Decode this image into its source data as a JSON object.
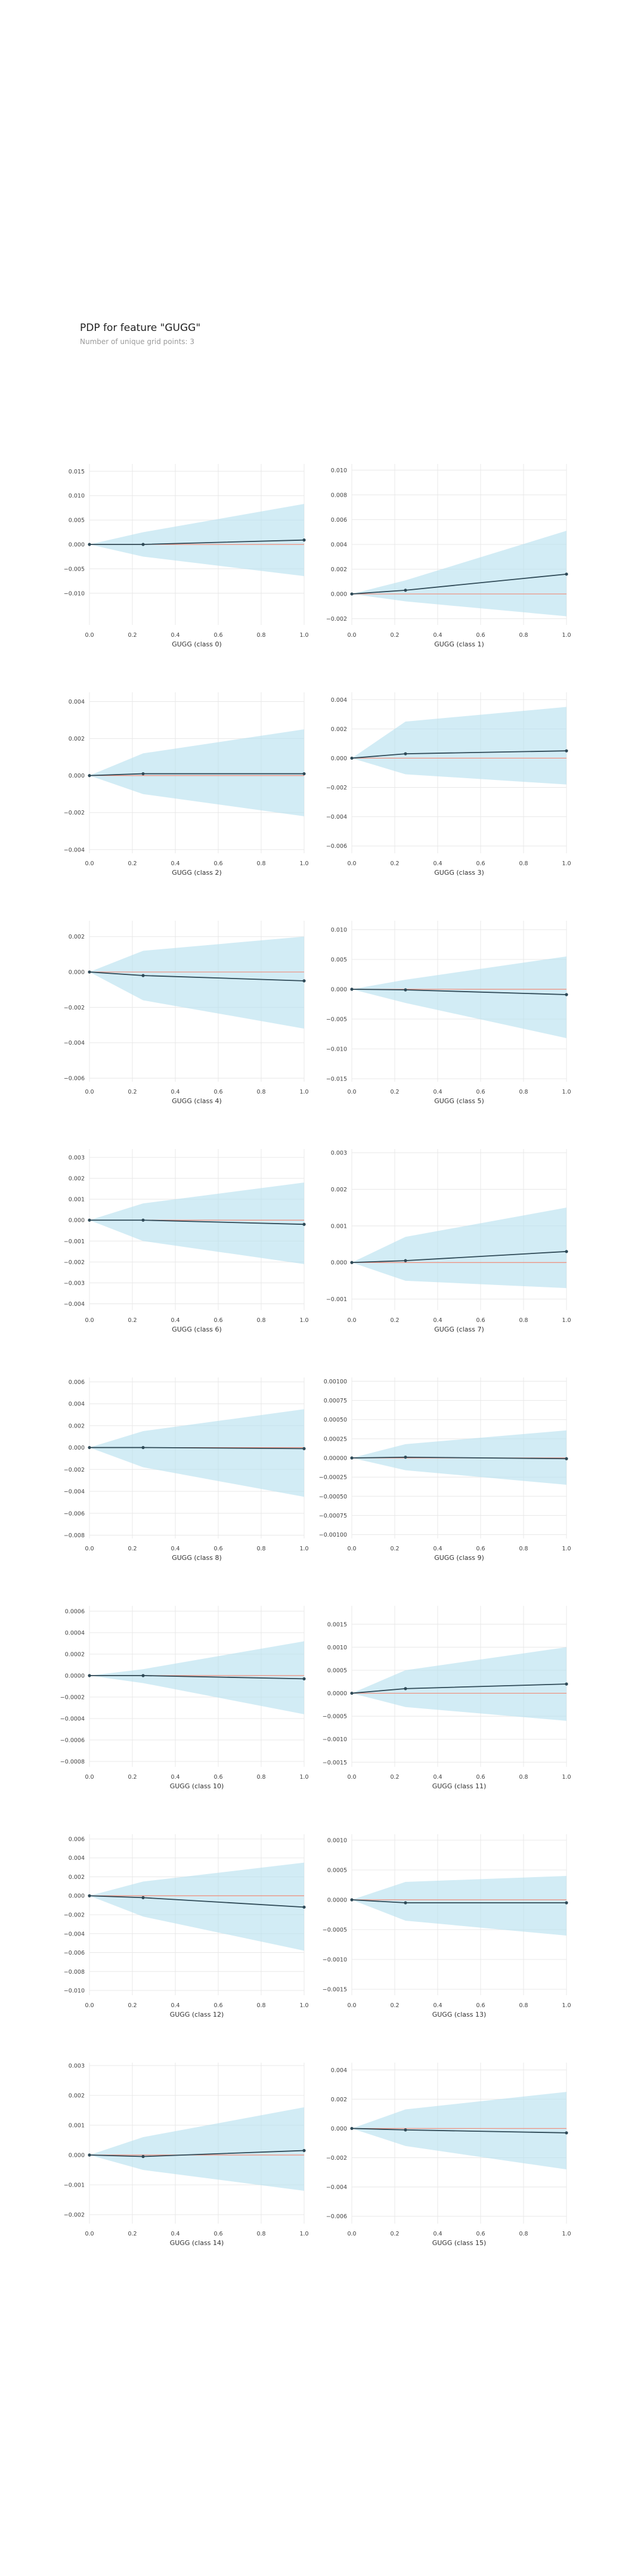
{
  "header": {
    "title": "PDP for feature \"GUGG\"",
    "subtitle": "Number of unique grid points: 3"
  },
  "colors": {
    "band": "#b7e1ef",
    "line": "#2f4a57",
    "reference": "#f08c7a",
    "grid": "#e8e8e8"
  },
  "chart_data": [
    {
      "type": "line",
      "xlabel": "GUGG (class 0)",
      "x": [
        0,
        0.25,
        1
      ],
      "y": [
        0,
        0,
        0.0009
      ],
      "lower": [
        0,
        -0.0025,
        -0.0065
      ],
      "upper": [
        0,
        0.0025,
        0.0083
      ],
      "ylim": [
        -0.0165,
        0.0165
      ],
      "yticks": [
        -0.01,
        -0.005,
        0,
        0.005,
        0.01,
        0.015
      ],
      "ytick_labels": [
        "−0.010",
        "−0.005",
        "0.000",
        "0.005",
        "0.010",
        "0.015"
      ],
      "xticks": [
        0,
        0.2,
        0.4,
        0.6,
        0.8,
        1
      ],
      "xtick_labels": [
        "0.0",
        "0.2",
        "0.4",
        "0.6",
        "0.8",
        "1.0"
      ]
    },
    {
      "type": "line",
      "xlabel": "GUGG (class 1)",
      "x": [
        0,
        0.25,
        1
      ],
      "y": [
        0,
        0.0003,
        0.0016
      ],
      "lower": [
        0,
        -0.0006,
        -0.0018
      ],
      "upper": [
        0,
        0.0011,
        0.0051
      ],
      "ylim": [
        -0.0025,
        0.0105
      ],
      "yticks": [
        -0.002,
        0,
        0.002,
        0.004,
        0.006,
        0.008,
        0.01
      ],
      "ytick_labels": [
        "−0.002",
        "0.000",
        "0.002",
        "0.004",
        "0.006",
        "0.008",
        "0.010"
      ],
      "xticks": [
        0,
        0.2,
        0.4,
        0.6,
        0.8,
        1
      ],
      "xtick_labels": [
        "0.0",
        "0.2",
        "0.4",
        "0.6",
        "0.8",
        "1.0"
      ]
    },
    {
      "type": "line",
      "xlabel": "GUGG (class 2)",
      "x": [
        0,
        0.25,
        1
      ],
      "y": [
        0,
        0.0001,
        0.0001
      ],
      "lower": [
        0,
        -0.001,
        -0.0022
      ],
      "upper": [
        0,
        0.0012,
        0.0025
      ],
      "ylim": [
        -0.0042,
        0.0045
      ],
      "yticks": [
        -0.004,
        -0.002,
        0,
        0.002,
        0.004
      ],
      "ytick_labels": [
        "−0.004",
        "−0.002",
        "0.000",
        "0.002",
        "0.004"
      ],
      "xticks": [
        0,
        0.2,
        0.4,
        0.6,
        0.8,
        1
      ],
      "xtick_labels": [
        "0.0",
        "0.2",
        "0.4",
        "0.6",
        "0.8",
        "1.0"
      ]
    },
    {
      "type": "line",
      "xlabel": "GUGG (class 3)",
      "x": [
        0,
        0.25,
        1
      ],
      "y": [
        0,
        0.0003,
        0.0005
      ],
      "lower": [
        0,
        -0.0011,
        -0.0018
      ],
      "upper": [
        0,
        0.0025,
        0.0035
      ],
      "ylim": [
        -0.0065,
        0.0045
      ],
      "yticks": [
        -0.006,
        -0.004,
        -0.002,
        0,
        0.002,
        0.004
      ],
      "ytick_labels": [
        "−0.006",
        "−0.004",
        "−0.002",
        "0.000",
        "0.002",
        "0.004"
      ],
      "xticks": [
        0,
        0.2,
        0.4,
        0.6,
        0.8,
        1
      ],
      "xtick_labels": [
        "0.0",
        "0.2",
        "0.4",
        "0.6",
        "0.8",
        "1.0"
      ]
    },
    {
      "type": "line",
      "xlabel": "GUGG (class 4)",
      "x": [
        0,
        0.25,
        1
      ],
      "y": [
        0,
        -0.0002,
        -0.0005
      ],
      "lower": [
        0,
        -0.0016,
        -0.0032
      ],
      "upper": [
        0,
        0.0012,
        0.002
      ],
      "ylim": [
        -0.0062,
        0.0029
      ],
      "yticks": [
        -0.006,
        -0.004,
        -0.002,
        0,
        0.002
      ],
      "ytick_labels": [
        "−0.006",
        "−0.004",
        "−0.002",
        "0.000",
        "0.002"
      ],
      "xticks": [
        0,
        0.2,
        0.4,
        0.6,
        0.8,
        1
      ],
      "xtick_labels": [
        "0.0",
        "0.2",
        "0.4",
        "0.6",
        "0.8",
        "1.0"
      ]
    },
    {
      "type": "line",
      "xlabel": "GUGG (class 5)",
      "x": [
        0,
        0.25,
        1
      ],
      "y": [
        0,
        -0.0001,
        -0.0009
      ],
      "lower": [
        0,
        -0.0023,
        -0.0082
      ],
      "upper": [
        0,
        0.0016,
        0.0055
      ],
      "ylim": [
        -0.0155,
        0.0115
      ],
      "yticks": [
        -0.015,
        -0.01,
        -0.005,
        0,
        0.005,
        0.01
      ],
      "ytick_labels": [
        "−0.015",
        "−0.010",
        "−0.005",
        "0.000",
        "0.005",
        "0.010"
      ],
      "xticks": [
        0,
        0.2,
        0.4,
        0.6,
        0.8,
        1
      ],
      "xtick_labels": [
        "0.0",
        "0.2",
        "0.4",
        "0.6",
        "0.8",
        "1.0"
      ]
    },
    {
      "type": "line",
      "xlabel": "GUGG (class 6)",
      "x": [
        0,
        0.25,
        1
      ],
      "y": [
        0,
        0,
        -0.0002
      ],
      "lower": [
        0,
        -0.001,
        -0.0021
      ],
      "upper": [
        0,
        0.0008,
        0.0018
      ],
      "ylim": [
        -0.0043,
        0.0034
      ],
      "yticks": [
        -0.004,
        -0.003,
        -0.002,
        -0.001,
        0,
        0.001,
        0.002,
        0.003
      ],
      "ytick_labels": [
        "−0.004",
        "−0.003",
        "−0.002",
        "−0.001",
        "0.000",
        "0.001",
        "0.002",
        "0.003"
      ],
      "xticks": [
        0,
        0.2,
        0.4,
        0.6,
        0.8,
        1
      ],
      "xtick_labels": [
        "0.0",
        "0.2",
        "0.4",
        "0.6",
        "0.8",
        "1.0"
      ]
    },
    {
      "type": "line",
      "xlabel": "GUGG (class 7)",
      "x": [
        0,
        0.25,
        1
      ],
      "y": [
        0,
        5e-05,
        0.0003
      ],
      "lower": [
        0,
        -0.0005,
        -0.0007
      ],
      "upper": [
        0,
        0.0007,
        0.0015
      ],
      "ylim": [
        -0.0013,
        0.0031
      ],
      "yticks": [
        -0.001,
        0,
        0.001,
        0.002,
        0.003
      ],
      "ytick_labels": [
        "−0.001",
        "0.000",
        "0.001",
        "0.002",
        "0.003"
      ],
      "xticks": [
        0,
        0.2,
        0.4,
        0.6,
        0.8,
        1
      ],
      "xtick_labels": [
        "0.0",
        "0.2",
        "0.4",
        "0.6",
        "0.8",
        "1.0"
      ]
    },
    {
      "type": "line",
      "xlabel": "GUGG (class 8)",
      "x": [
        0,
        0.25,
        1
      ],
      "y": [
        0,
        0,
        -0.0001
      ],
      "lower": [
        0,
        -0.0018,
        -0.0045
      ],
      "upper": [
        0,
        0.0015,
        0.0035
      ],
      "ylim": [
        -0.0083,
        0.0064
      ],
      "yticks": [
        -0.008,
        -0.006,
        -0.004,
        -0.002,
        0,
        0.002,
        0.004,
        0.006
      ],
      "ytick_labels": [
        "−0.008",
        "−0.006",
        "−0.004",
        "−0.002",
        "0.000",
        "0.002",
        "0.004",
        "0.006"
      ],
      "xticks": [
        0,
        0.2,
        0.4,
        0.6,
        0.8,
        1
      ],
      "xtick_labels": [
        "0.0",
        "0.2",
        "0.4",
        "0.6",
        "0.8",
        "1.0"
      ]
    },
    {
      "type": "line",
      "xlabel": "GUGG (class 9)",
      "x": [
        0,
        0.25,
        1
      ],
      "y": [
        0,
        1e-05,
        -1e-05
      ],
      "lower": [
        0,
        -0.00016,
        -0.00035
      ],
      "upper": [
        0,
        0.00018,
        0.00036
      ],
      "ylim": [
        -0.00105,
        0.00105
      ],
      "yticks": [
        -0.001,
        -0.00075,
        -0.0005,
        -0.00025,
        0,
        0.00025,
        0.0005,
        0.00075,
        0.001
      ],
      "ytick_labels": [
        "−0.00100",
        "−0.00075",
        "−0.00050",
        "−0.00025",
        "0.00000",
        "0.00025",
        "0.00050",
        "0.00075",
        "0.00100"
      ],
      "xticks": [
        0,
        0.2,
        0.4,
        0.6,
        0.8,
        1
      ],
      "xtick_labels": [
        "0.0",
        "0.2",
        "0.4",
        "0.6",
        "0.8",
        "1.0"
      ]
    },
    {
      "type": "line",
      "xlabel": "GUGG (class 10)",
      "x": [
        0,
        0.25,
        1
      ],
      "y": [
        0,
        0,
        -3e-05
      ],
      "lower": [
        0,
        -7e-05,
        -0.00036
      ],
      "upper": [
        0,
        6e-05,
        0.00032
      ],
      "ylim": [
        -0.00085,
        0.00065
      ],
      "yticks": [
        -0.0008,
        -0.0006,
        -0.0004,
        -0.0002,
        0,
        0.0002,
        0.0004,
        0.0006
      ],
      "ytick_labels": [
        "−0.0008",
        "−0.0006",
        "−0.0004",
        "−0.0002",
        "0.0000",
        "0.0002",
        "0.0004",
        "0.0006"
      ],
      "xticks": [
        0,
        0.2,
        0.4,
        0.6,
        0.8,
        1
      ],
      "xtick_labels": [
        "0.0",
        "0.2",
        "0.4",
        "0.6",
        "0.8",
        "1.0"
      ]
    },
    {
      "type": "line",
      "xlabel": "GUGG (class 11)",
      "x": [
        0,
        0.25,
        1
      ],
      "y": [
        0,
        0.0001,
        0.0002
      ],
      "lower": [
        0,
        -0.0003,
        -0.0006
      ],
      "upper": [
        0,
        0.0005,
        0.001
      ],
      "ylim": [
        -0.0016,
        0.0019
      ],
      "yticks": [
        -0.0015,
        -0.001,
        -0.0005,
        0,
        0.0005,
        0.001,
        0.0015
      ],
      "ytick_labels": [
        "−0.0015",
        "−0.0010",
        "−0.0005",
        "0.0000",
        "0.0005",
        "0.0010",
        "0.0015"
      ],
      "xticks": [
        0,
        0.2,
        0.4,
        0.6,
        0.8,
        1
      ],
      "xtick_labels": [
        "0.0",
        "0.2",
        "0.4",
        "0.6",
        "0.8",
        "1.0"
      ]
    },
    {
      "type": "line",
      "xlabel": "GUGG (class 12)",
      "x": [
        0,
        0.25,
        1
      ],
      "y": [
        0,
        -0.0002,
        -0.0012
      ],
      "lower": [
        0,
        -0.0022,
        -0.0058
      ],
      "upper": [
        0,
        0.0015,
        0.0035
      ],
      "ylim": [
        -0.0105,
        0.0065
      ],
      "yticks": [
        -0.01,
        -0.008,
        -0.006,
        -0.004,
        -0.002,
        0,
        0.002,
        0.004,
        0.006
      ],
      "ytick_labels": [
        "−0.010",
        "−0.008",
        "−0.006",
        "−0.004",
        "−0.002",
        "0.000",
        "0.002",
        "0.004",
        "0.006"
      ],
      "xticks": [
        0,
        0.2,
        0.4,
        0.6,
        0.8,
        1
      ],
      "xtick_labels": [
        "0.0",
        "0.2",
        "0.4",
        "0.6",
        "0.8",
        "1.0"
      ]
    },
    {
      "type": "line",
      "xlabel": "GUGG (class 13)",
      "x": [
        0,
        0.25,
        1
      ],
      "y": [
        0,
        -5e-05,
        -5e-05
      ],
      "lower": [
        0,
        -0.00035,
        -0.0006
      ],
      "upper": [
        0,
        0.0003,
        0.0004
      ],
      "ylim": [
        -0.0016,
        0.0011
      ],
      "yticks": [
        -0.0015,
        -0.001,
        -0.0005,
        0,
        0.0005,
        0.001
      ],
      "ytick_labels": [
        "−0.0015",
        "−0.0010",
        "−0.0005",
        "0.0000",
        "0.0005",
        "0.0010"
      ],
      "xticks": [
        0,
        0.2,
        0.4,
        0.6,
        0.8,
        1
      ],
      "xtick_labels": [
        "0.0",
        "0.2",
        "0.4",
        "0.6",
        "0.8",
        "1.0"
      ]
    },
    {
      "type": "line",
      "xlabel": "GUGG (class 14)",
      "x": [
        0,
        0.25,
        1
      ],
      "y": [
        0,
        -5e-05,
        0.00015
      ],
      "lower": [
        0,
        -0.0005,
        -0.0012
      ],
      "upper": [
        0,
        0.0006,
        0.0016
      ],
      "ylim": [
        -0.0023,
        0.0031
      ],
      "yticks": [
        -0.002,
        -0.001,
        0,
        0.001,
        0.002,
        0.003
      ],
      "ytick_labels": [
        "−0.002",
        "−0.001",
        "0.000",
        "0.001",
        "0.002",
        "0.003"
      ],
      "xticks": [
        0,
        0.2,
        0.4,
        0.6,
        0.8,
        1
      ],
      "xtick_labels": [
        "0.0",
        "0.2",
        "0.4",
        "0.6",
        "0.8",
        "1.0"
      ]
    },
    {
      "type": "line",
      "xlabel": "GUGG (class 15)",
      "x": [
        0,
        0.25,
        1
      ],
      "y": [
        0,
        -0.0001,
        -0.0003
      ],
      "lower": [
        0,
        -0.0012,
        -0.0028
      ],
      "upper": [
        0,
        0.0013,
        0.0025
      ],
      "ylim": [
        -0.0065,
        0.0045
      ],
      "yticks": [
        -0.006,
        -0.004,
        -0.002,
        0,
        0.002,
        0.004
      ],
      "ytick_labels": [
        "−0.006",
        "−0.004",
        "−0.002",
        "0.000",
        "0.002",
        "0.004"
      ],
      "xticks": [
        0,
        0.2,
        0.4,
        0.6,
        0.8,
        1
      ],
      "xtick_labels": [
        "0.0",
        "0.2",
        "0.4",
        "0.6",
        "0.8",
        "1.0"
      ]
    }
  ]
}
